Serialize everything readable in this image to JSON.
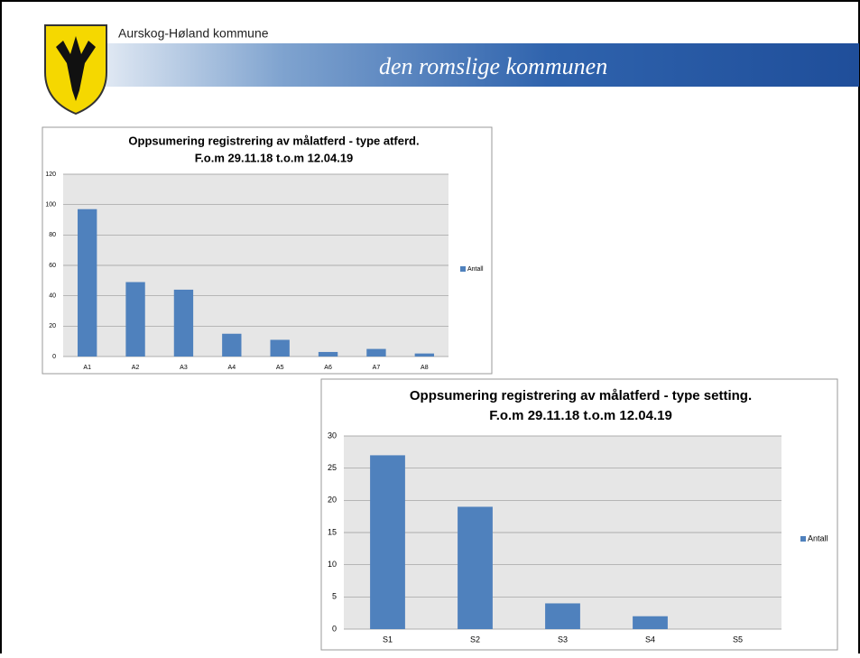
{
  "header": {
    "org": "Aurskog-Høland kommune",
    "slogan": "den romslige kommunen"
  },
  "chart_data": [
    {
      "type": "bar",
      "title": "Oppsumering registrering av målatferd - type atferd.",
      "subtitle": "F.o.m 29.11.18 t.o.m 12.04.19",
      "categories": [
        "A1",
        "A2",
        "A3",
        "A4",
        "A5",
        "A6",
        "A7",
        "A8"
      ],
      "series": [
        {
          "name": "Antall",
          "color": "#4f81bd",
          "values": [
            97,
            49,
            44,
            15,
            11,
            3,
            5,
            2
          ]
        }
      ],
      "ylim": [
        0,
        120
      ],
      "yticks": [
        0,
        20,
        40,
        60,
        80,
        100,
        120
      ],
      "grid": true,
      "legend": "right"
    },
    {
      "type": "bar",
      "title": "Oppsumering registrering av målatferd - type setting.",
      "subtitle": "F.o.m 29.11.18 t.o.m 12.04.19",
      "categories": [
        "S1",
        "S2",
        "S3",
        "S4",
        "S5"
      ],
      "series": [
        {
          "name": "Antall",
          "color": "#4f81bd",
          "values": [
            27,
            19,
            4,
            2,
            0
          ]
        }
      ],
      "ylim": [
        0,
        30
      ],
      "yticks": [
        0,
        5,
        10,
        15,
        20,
        25,
        30
      ],
      "grid": true,
      "legend": "right"
    }
  ]
}
